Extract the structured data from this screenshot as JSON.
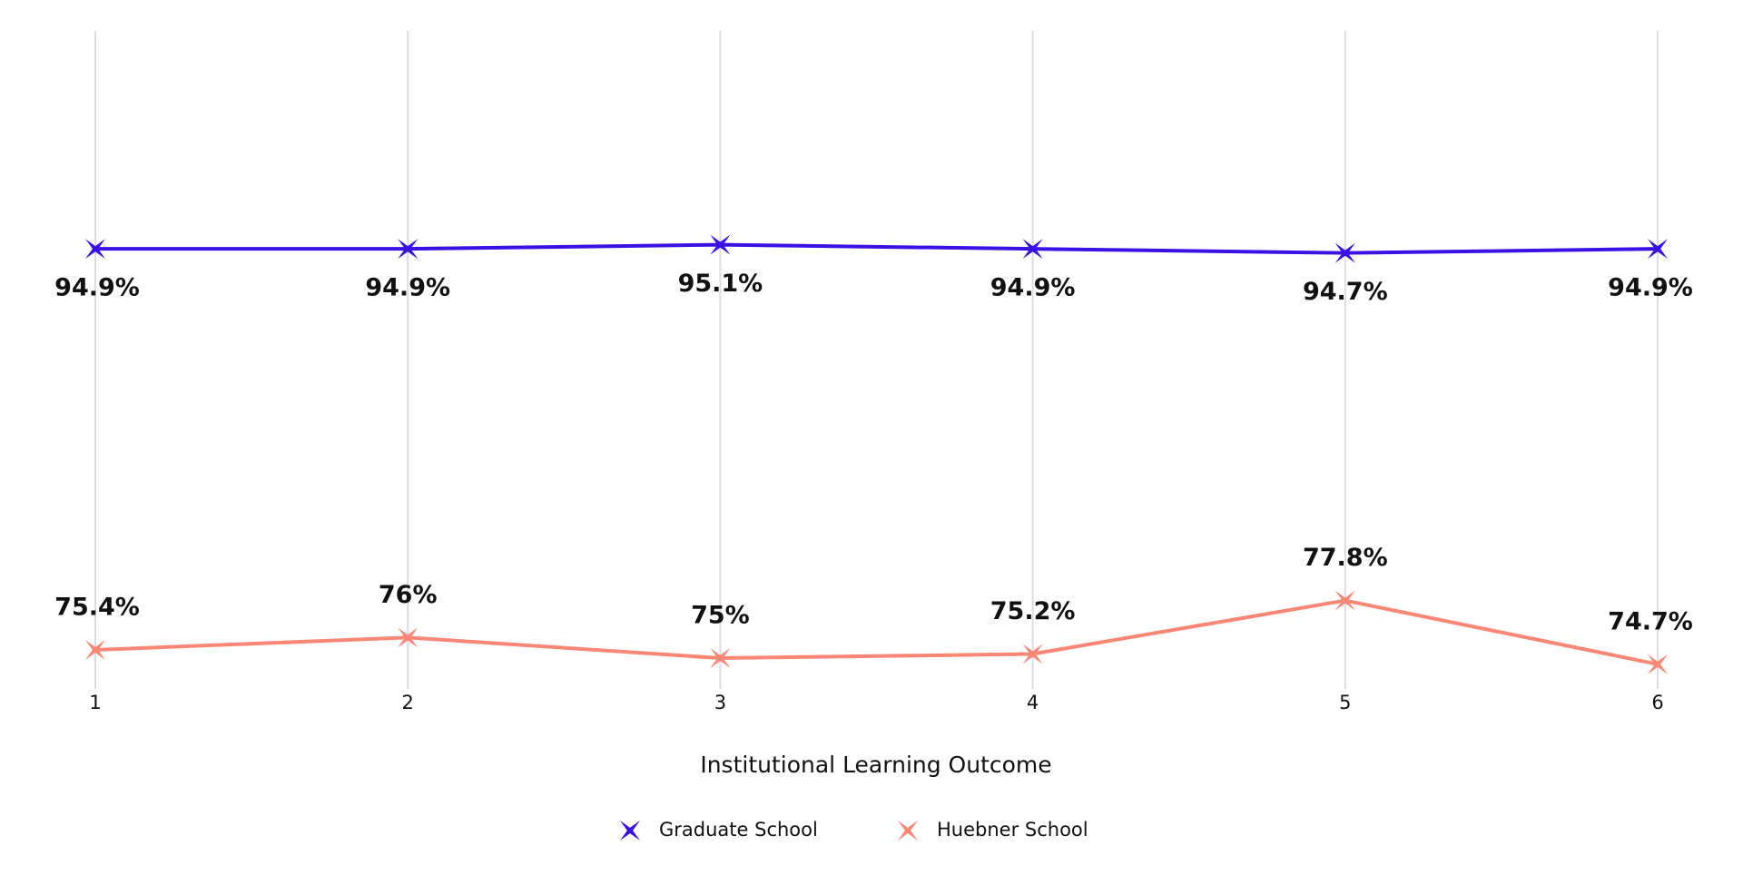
{
  "chart_data": {
    "type": "line",
    "x_label": "Institutional Learning Outcome",
    "categories": [
      "1",
      "2",
      "3",
      "4",
      "5",
      "6"
    ],
    "series": [
      {
        "name": "Graduate School",
        "color": "#3a10e5",
        "values": [
          94.9,
          94.9,
          95.1,
          94.9,
          94.7,
          94.9
        ],
        "value_labels": [
          "94.9%",
          "94.9%",
          "95.1%",
          "94.9%",
          "94.7%",
          "94.9%"
        ]
      },
      {
        "name": "Huebner School",
        "color": "#fa8775",
        "values": [
          75.4,
          76,
          75,
          75.2,
          77.8,
          74.7
        ],
        "value_labels": [
          "75.4%",
          "76%",
          "75%",
          "75.2%",
          "77.8%",
          "74.7%"
        ]
      }
    ],
    "ylim": [
      73.5,
      105.5
    ],
    "grid": true,
    "legend": "bottom"
  }
}
